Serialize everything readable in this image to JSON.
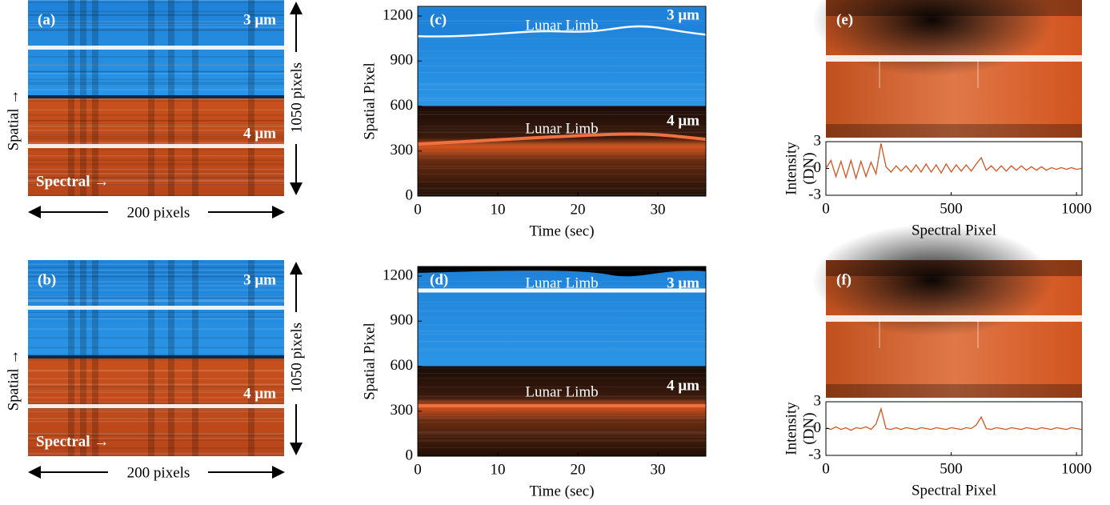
{
  "chart_data": [
    {
      "type": "image",
      "label": "(a)",
      "annotations": [
        "3 μm",
        "4 μm",
        "Spectral →"
      ],
      "ylabel": "Spatial →",
      "height_label": "1050 pixels",
      "width_label": "200 pixels"
    },
    {
      "type": "image",
      "label": "(b)",
      "annotations": [
        "3 μm",
        "4 μm",
        "Spectral →"
      ],
      "ylabel": "Spatial →",
      "height_label": "1050 pixels",
      "width_label": "200 pixels"
    },
    {
      "type": "heatmap",
      "label": "(c)",
      "annotations": [
        "Lunar Limb",
        "3 μm",
        "Lunar Limb",
        "4 μm"
      ],
      "xlabel": "Time (sec)",
      "ylabel": "Spatial Pixel",
      "xlim": [
        0,
        36
      ],
      "xticks": [
        0,
        10,
        20,
        30
      ],
      "ylim": [
        0,
        1264
      ],
      "yticks": [
        0,
        300,
        600,
        900,
        1200
      ]
    },
    {
      "type": "heatmap",
      "label": "(d)",
      "annotations": [
        "Lunar Limb",
        "3 μm",
        "Lunar Limb",
        "4 μm"
      ],
      "xlabel": "Time (sec)",
      "ylabel": "Spatial Pixel",
      "xlim": [
        0,
        36
      ],
      "xticks": [
        0,
        10,
        20,
        30
      ],
      "ylim": [
        0,
        1264
      ],
      "yticks": [
        0,
        300,
        600,
        900,
        1200
      ]
    },
    {
      "type": "line",
      "label": "(e)",
      "xlabel": "Spectral Pixel",
      "ylabel": [
        "Intensity",
        "(DN)"
      ],
      "xlim": [
        0,
        1022
      ],
      "xticks": [
        0,
        500,
        1000
      ],
      "ylim": [
        -3,
        3
      ],
      "yticks": [
        -3,
        0,
        3
      ],
      "x": [
        0,
        20,
        40,
        60,
        80,
        100,
        120,
        140,
        160,
        180,
        200,
        220,
        240,
        260,
        280,
        300,
        320,
        340,
        360,
        380,
        400,
        420,
        440,
        460,
        480,
        500,
        520,
        540,
        560,
        580,
        600,
        620,
        640,
        660,
        680,
        700,
        720,
        740,
        760,
        780,
        800,
        820,
        840,
        860,
        880,
        900,
        920,
        940,
        960,
        980,
        1000,
        1020
      ],
      "series": [
        {
          "color": "#d2541e",
          "values": [
            0,
            0.9,
            -0.9,
            0.8,
            -1.0,
            0.9,
            -1.1,
            0.8,
            -0.9,
            0.7,
            -0.6,
            2.8,
            0.2,
            -0.4,
            0.3,
            -0.3,
            0.3,
            -0.4,
            0.4,
            -0.4,
            0.5,
            -0.4,
            0.4,
            -0.5,
            0.5,
            -0.4,
            0.4,
            -0.3,
            0.4,
            -0.3,
            0.5,
            1.2,
            -0.2,
            0.3,
            -0.3,
            0.3,
            -0.3,
            0.3,
            -0.2,
            0.3,
            -0.2,
            0.2,
            -0.2,
            0.2,
            -0.2,
            0.1,
            -0.1,
            0.1,
            -0.1,
            0.1,
            -0.1,
            0.0
          ]
        }
      ]
    },
    {
      "type": "line",
      "label": "(f)",
      "xlabel": "Spectral Pixel",
      "ylabel": [
        "Intensity",
        "(DN)"
      ],
      "xlim": [
        0,
        1022
      ],
      "xticks": [
        0,
        500,
        1000
      ],
      "ylim": [
        -3,
        3
      ],
      "yticks": [
        -3,
        0,
        3
      ],
      "x": [
        0,
        20,
        40,
        60,
        80,
        100,
        120,
        140,
        160,
        180,
        200,
        220,
        240,
        260,
        280,
        300,
        320,
        340,
        360,
        380,
        400,
        420,
        440,
        460,
        480,
        500,
        520,
        540,
        560,
        580,
        600,
        620,
        640,
        660,
        680,
        700,
        720,
        740,
        760,
        780,
        800,
        820,
        840,
        860,
        880,
        900,
        920,
        940,
        960,
        980,
        1000,
        1020
      ],
      "series": [
        {
          "color": "#d2541e",
          "values": [
            0.1,
            -0.1,
            0.2,
            -0.1,
            0.1,
            -0.2,
            0.1,
            0,
            0.2,
            -0.1,
            0.5,
            2.2,
            0,
            -0.1,
            0.1,
            -0.1,
            0.1,
            0,
            -0.1,
            0.1,
            0,
            -0.1,
            0.1,
            0,
            -0.1,
            0.1,
            0,
            -0.1,
            0.1,
            0,
            0.4,
            1.3,
            0,
            -0.1,
            0.1,
            0,
            -0.1,
            0.1,
            0,
            -0.1,
            0.1,
            0,
            -0.1,
            0.1,
            0,
            -0.1,
            0.1,
            0,
            -0.1,
            0.1,
            0,
            -0.1
          ]
        }
      ]
    }
  ]
}
